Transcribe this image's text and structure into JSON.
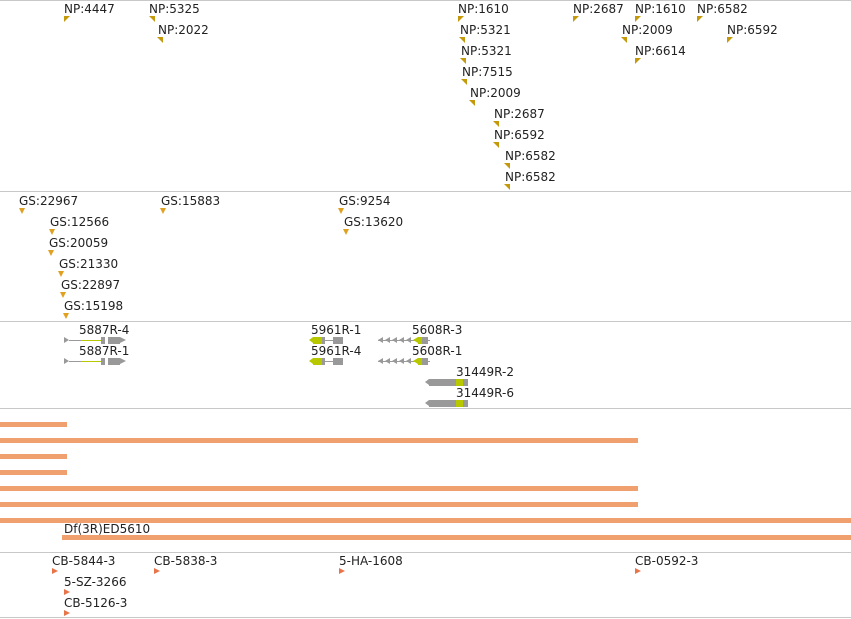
{
  "tracks": {
    "np": {
      "labels": [
        "NP:4447",
        "NP:5325",
        "NP:2022",
        "NP:1610",
        "NP:5321",
        "NP:5321",
        "NP:7515",
        "NP:2009",
        "NP:2687",
        "NP:6592",
        "NP:6582",
        "NP:6582",
        "NP:2687",
        "NP:1610",
        "NP:2009",
        "NP:6614",
        "NP:6582",
        "NP:6592"
      ]
    },
    "gs": {
      "labels": [
        "GS:22967",
        "GS:12566",
        "GS:20059",
        "GS:21330",
        "GS:22897",
        "GS:15198",
        "GS:15883",
        "GS:9254",
        "GS:13620"
      ]
    },
    "genes": {
      "labels": [
        "5887R-4",
        "5887R-1",
        "5961R-1",
        "5961R-4",
        "5608R-3",
        "5608R-1",
        "31449R-2",
        "31449R-6"
      ]
    },
    "deficiency": {
      "labels": [
        "Df(3R)ED5610"
      ]
    },
    "cb": {
      "labels": [
        "CB-5844-3",
        "5-SZ-3266",
        "CB-5126-3",
        "CB-5838-3",
        "5-HA-1608",
        "CB-0592-3"
      ]
    }
  },
  "colors": {
    "np_marker": "#c49a0c",
    "gs_marker": "#e0a020",
    "cb_marker": "#e8744a",
    "bar": "#efa06e",
    "exon_grey": "#999999",
    "exon_yellow": "#b8c800",
    "separator": "#c8c8c8"
  }
}
